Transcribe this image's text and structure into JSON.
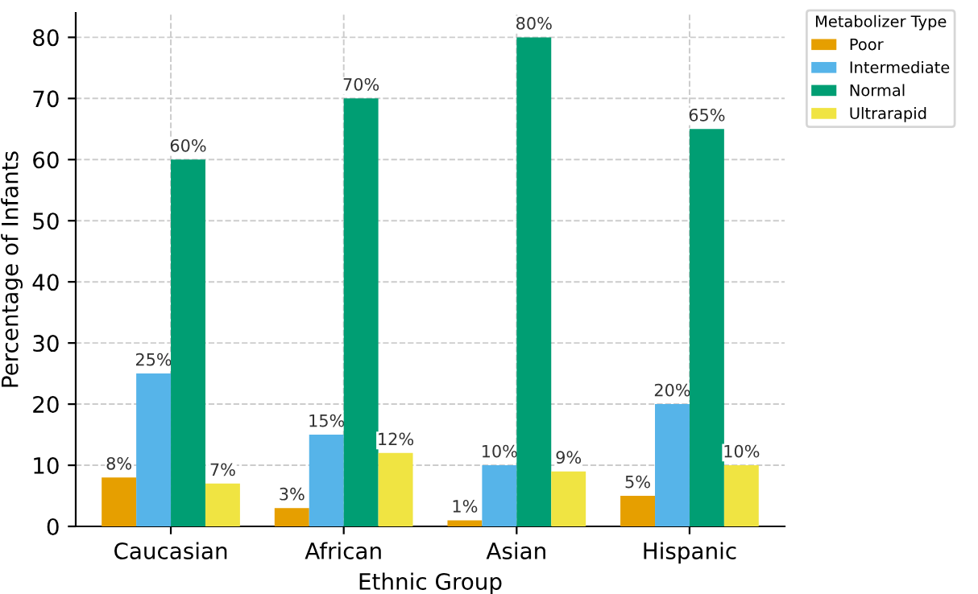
{
  "chart_data": {
    "type": "bar",
    "xlabel": "Ethnic Group",
    "ylabel": "Percentage of Infants",
    "legend_title": "Metabolizer Type",
    "categories": [
      "Caucasian",
      "African",
      "Asian",
      "Hispanic"
    ],
    "series": [
      {
        "name": "Poor",
        "color": "#e69f00",
        "values": [
          8,
          3,
          1,
          5
        ],
        "value_labels": [
          "8%",
          "3%",
          "1%",
          "5%"
        ]
      },
      {
        "name": "Intermediate",
        "color": "#56b4e9",
        "values": [
          25,
          15,
          10,
          20
        ],
        "value_labels": [
          "25%",
          "15%",
          "10%",
          "20%"
        ]
      },
      {
        "name": "Normal",
        "color": "#009e73",
        "values": [
          60,
          70,
          80,
          65
        ],
        "value_labels": [
          "60%",
          "70%",
          "80%",
          "65%"
        ]
      },
      {
        "name": "Ultrarapid",
        "color": "#f0e442",
        "values": [
          7,
          12,
          9,
          10
        ],
        "value_labels": [
          "7%",
          "12%",
          "9%",
          "10%"
        ]
      }
    ],
    "ylim": [
      0,
      84
    ],
    "yticks": [
      0,
      10,
      20,
      30,
      40,
      50,
      60,
      70,
      80
    ],
    "grid": true,
    "legend": "top right"
  }
}
